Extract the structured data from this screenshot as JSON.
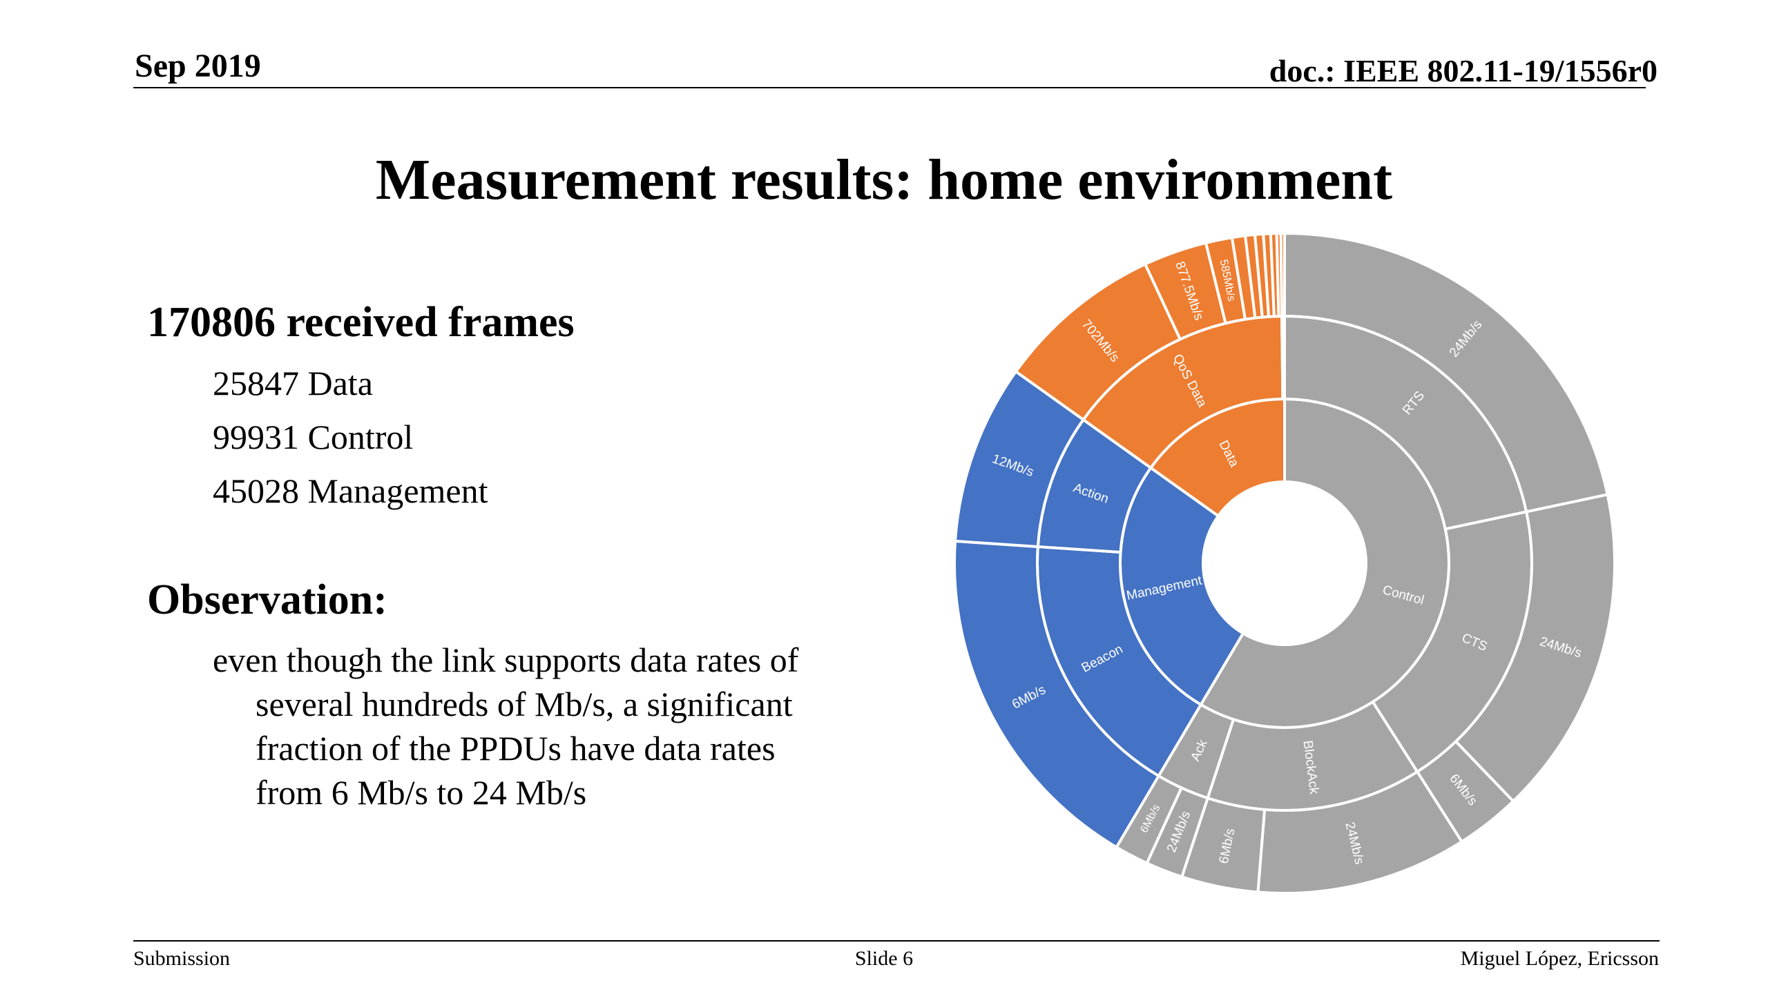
{
  "header": {
    "date": "Sep 2019",
    "doc": "doc.: IEEE 802.11-19/1556r0"
  },
  "title": "Measurement results: home environment",
  "frames": {
    "heading": "170806 received frames",
    "items": [
      "25847 Data",
      "99931 Control",
      "45028 Management"
    ]
  },
  "observation": {
    "heading": "Observation:",
    "lines": [
      "even though the link supports data rates of",
      "several hundreds of Mb/s, a significant",
      "fraction of the PPDUs have data rates",
      "from 6 Mb/s to 24 Mb/s"
    ]
  },
  "footer": {
    "left": "Submission",
    "center": "Slide 6",
    "right": "Miguel López, Ericsson"
  },
  "colors": {
    "Control": "#a5a5a5",
    "Data": "#ed7d31",
    "Management": "#4472c4"
  },
  "chart_data": {
    "type": "sunburst",
    "title": "",
    "start_angle_deg": 0,
    "data": [
      {
        "name": "Control",
        "value": 99931,
        "children": [
          {
            "name": "RTS",
            "value": 37000,
            "children": [
              {
                "name": "24Mb/s",
                "value": 37000
              }
            ]
          },
          {
            "name": "CTS",
            "value": 33000,
            "children": [
              {
                "name": "24Mb/s",
                "value": 27600
              },
              {
                "name": "6Mb/s",
                "value": 5400
              }
            ]
          },
          {
            "name": "BlockAck",
            "value": 24000,
            "children": [
              {
                "name": "24Mb/s",
                "value": 17600
              },
              {
                "name": "6Mb/s",
                "value": 6400
              }
            ]
          },
          {
            "name": "Ack",
            "value": 5931,
            "children": [
              {
                "name": "24Mb/s",
                "value": 3100
              },
              {
                "name": "6Mb/s",
                "value": 2831
              }
            ]
          }
        ]
      },
      {
        "name": "Management",
        "value": 45028,
        "children": [
          {
            "name": "Beacon",
            "value": 30000,
            "children": [
              {
                "name": "6Mb/s",
                "value": 30000
              }
            ]
          },
          {
            "name": "Action",
            "value": 15028,
            "children": [
              {
                "name": "12Mb/s",
                "value": 15028
              }
            ]
          }
        ]
      },
      {
        "name": "Data",
        "value": 25847,
        "children": [
          {
            "name": "QoS Data",
            "value": 25547,
            "children": [
              {
                "name": "702Mb/s",
                "value": 14000
              },
              {
                "name": "877.5Mb/s",
                "value": 5300
              },
              {
                "name": "585Mb/s",
                "value": 2200
              },
              {
                "name": "",
                "value": 1100
              },
              {
                "name": "",
                "value": 800
              },
              {
                "name": "",
                "value": 700
              },
              {
                "name": "",
                "value": 600
              },
              {
                "name": "",
                "value": 500
              },
              {
                "name": "",
                "value": 347
              }
            ]
          },
          {
            "name": "",
            "value": 300,
            "children": [
              {
                "name": "",
                "value": 300
              }
            ]
          }
        ]
      }
    ]
  }
}
